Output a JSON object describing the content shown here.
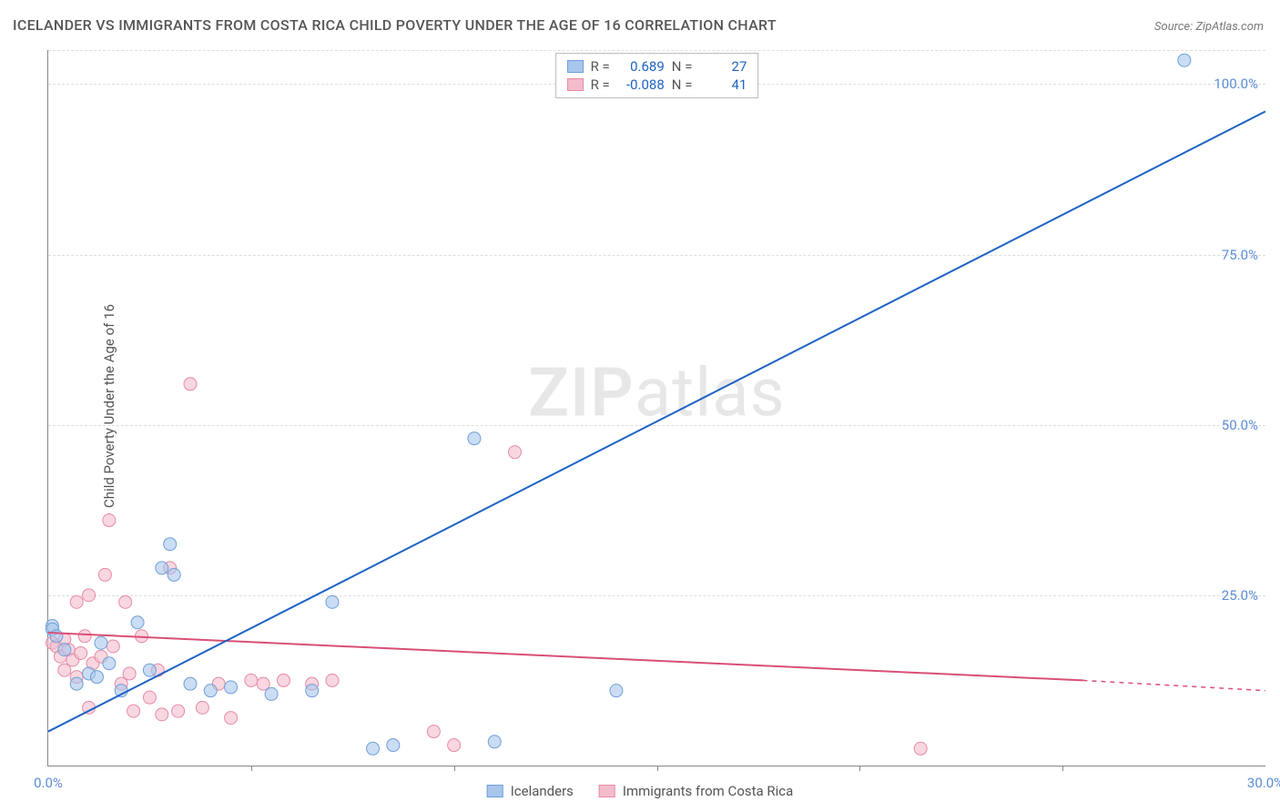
{
  "title": "ICELANDER VS IMMIGRANTS FROM COSTA RICA CHILD POVERTY UNDER THE AGE OF 16 CORRELATION CHART",
  "source_label": "Source:",
  "source_name": "ZipAtlas.com",
  "ylabel": "Child Poverty Under the Age of 16",
  "watermark_a": "ZIP",
  "watermark_b": "atlas",
  "xlim": [
    0,
    30
  ],
  "ylim": [
    0,
    105
  ],
  "x_ticks": [
    {
      "pos": 0,
      "label": "0.0%"
    },
    {
      "pos": 30,
      "label": "30.0%"
    }
  ],
  "x_minor_ticks": [
    5,
    10,
    15,
    20,
    25
  ],
  "y_ticks": [
    {
      "pos": 25,
      "label": "25.0%"
    },
    {
      "pos": 50,
      "label": "50.0%"
    },
    {
      "pos": 75,
      "label": "75.0%"
    },
    {
      "pos": 100,
      "label": "100.0%"
    }
  ],
  "axis_label_color": "#5b8dd6",
  "grid_color": "#dddddd",
  "series": [
    {
      "name": "Icelanders",
      "color_fill": "#a9c6ec",
      "color_stroke": "#6f9fd8",
      "line_color": "#1e63c4",
      "r_value": "0.689",
      "n_value": "27",
      "trend": {
        "x1": 0,
        "y1": 5,
        "x2": 30,
        "y2": 96
      },
      "points": [
        [
          0.1,
          20.5
        ],
        [
          0.1,
          20.0
        ],
        [
          0.2,
          19.0
        ],
        [
          0.4,
          17.0
        ],
        [
          0.7,
          12.0
        ],
        [
          1.0,
          13.5
        ],
        [
          1.2,
          13.0
        ],
        [
          1.5,
          15.0
        ],
        [
          1.3,
          18.0
        ],
        [
          1.8,
          11.0
        ],
        [
          2.2,
          21.0
        ],
        [
          2.5,
          14.0
        ],
        [
          2.8,
          29.0
        ],
        [
          3.0,
          32.5
        ],
        [
          3.1,
          28.0
        ],
        [
          3.5,
          12.0
        ],
        [
          4.0,
          11.0
        ],
        [
          4.5,
          11.5
        ],
        [
          5.5,
          10.5
        ],
        [
          6.5,
          11.0
        ],
        [
          7.0,
          24.0
        ],
        [
          8.0,
          2.5
        ],
        [
          8.5,
          3.0
        ],
        [
          10.5,
          48.0
        ],
        [
          11.0,
          3.5
        ],
        [
          14.0,
          11.0
        ],
        [
          28.0,
          103.5
        ]
      ]
    },
    {
      "name": "Immigrants from Costa Rica",
      "color_fill": "#f3bccb",
      "color_stroke": "#e78aa5",
      "line_color": "#d94f76",
      "r_value": "-0.088",
      "n_value": "41",
      "trend": {
        "x1": 0,
        "y1": 19.5,
        "x2": 25.5,
        "y2": 12.5
      },
      "trend_dashed": {
        "x1": 25.5,
        "y1": 12.5,
        "x2": 30,
        "y2": 11.0
      },
      "points": [
        [
          0.1,
          18.0
        ],
        [
          0.2,
          17.5
        ],
        [
          0.3,
          16.0
        ],
        [
          0.4,
          18.5
        ],
        [
          0.4,
          14.0
        ],
        [
          0.5,
          17.0
        ],
        [
          0.6,
          15.5
        ],
        [
          0.7,
          24.0
        ],
        [
          0.7,
          13.0
        ],
        [
          0.8,
          16.5
        ],
        [
          0.9,
          19.0
        ],
        [
          1.0,
          25.0
        ],
        [
          1.0,
          8.5
        ],
        [
          1.1,
          15.0
        ],
        [
          1.3,
          16.0
        ],
        [
          1.4,
          28.0
        ],
        [
          1.5,
          36.0
        ],
        [
          1.6,
          17.5
        ],
        [
          1.8,
          12.0
        ],
        [
          1.9,
          24.0
        ],
        [
          2.0,
          13.5
        ],
        [
          2.1,
          8.0
        ],
        [
          2.3,
          19.0
        ],
        [
          2.5,
          10.0
        ],
        [
          2.7,
          14.0
        ],
        [
          2.8,
          7.5
        ],
        [
          3.0,
          29.0
        ],
        [
          3.2,
          8.0
        ],
        [
          3.5,
          56.0
        ],
        [
          3.8,
          8.5
        ],
        [
          4.2,
          12.0
        ],
        [
          4.5,
          7.0
        ],
        [
          5.0,
          12.5
        ],
        [
          5.3,
          12.0
        ],
        [
          5.8,
          12.5
        ],
        [
          6.5,
          12.0
        ],
        [
          7.0,
          12.5
        ],
        [
          9.5,
          5.0
        ],
        [
          10.0,
          3.0
        ],
        [
          11.5,
          46.0
        ],
        [
          21.5,
          2.5
        ]
      ]
    }
  ],
  "legend_labels": {
    "series1": "Icelanders",
    "series2": "Immigrants from Costa Rica"
  },
  "stats_labels": {
    "r": "R =",
    "n": "N ="
  }
}
